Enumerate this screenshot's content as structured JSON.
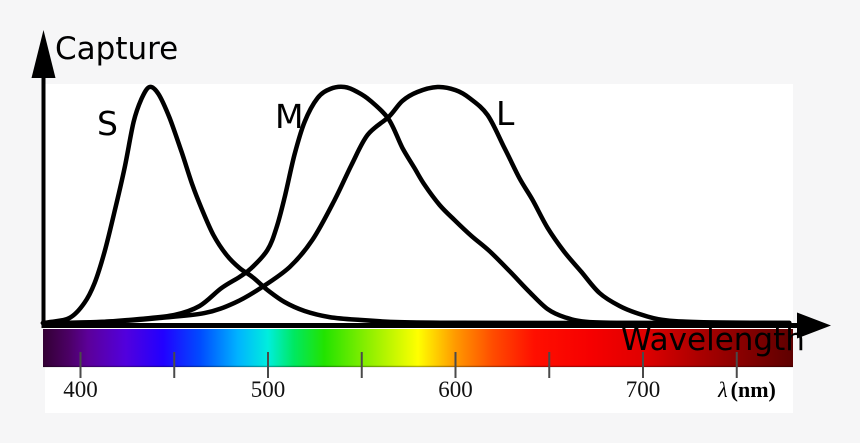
{
  "page": {
    "background_color": "#f6f6f7",
    "panel_color": "#ffffff"
  },
  "chart_data": {
    "type": "line",
    "xlabel": "Wavelength",
    "ylabel": "Capture",
    "x_unit_symbol": "λ",
    "x_unit_name": "(nm)",
    "x_axis_nm_range": [
      380,
      780
    ],
    "y_range": [
      0,
      1
    ],
    "grid": false,
    "legend": "inline labels S, M, L at curve peaks",
    "curve_color": "#000000",
    "axis_color": "#000000",
    "x_ticks_nm": [
      400,
      450,
      500,
      550,
      600,
      650,
      700,
      750
    ],
    "x_labeled_ticks": [
      {
        "nm": 400,
        "label": "400"
      },
      {
        "nm": 500,
        "label": "500"
      },
      {
        "nm": 600,
        "label": "600"
      },
      {
        "nm": 700,
        "label": "700"
      }
    ],
    "series": [
      {
        "name": "S",
        "peak_nm": 437,
        "points": [
          [
            380,
            0
          ],
          [
            383.5,
            0.004
          ],
          [
            394.1,
            0.021
          ],
          [
            402.1,
            0.085
          ],
          [
            407.5,
            0.169
          ],
          [
            412.8,
            0.301
          ],
          [
            418.1,
            0.47
          ],
          [
            423.5,
            0.657
          ],
          [
            428.3,
            0.852
          ],
          [
            432.5,
            0.949
          ],
          [
            436.8,
            1.0
          ],
          [
            441.6,
            0.97
          ],
          [
            447.5,
            0.869
          ],
          [
            453.9,
            0.725
          ],
          [
            459.7,
            0.585
          ],
          [
            464.5,
            0.487
          ],
          [
            470.9,
            0.373
          ],
          [
            477.9,
            0.288
          ],
          [
            484.8,
            0.233
          ],
          [
            491.7,
            0.195
          ],
          [
            499.7,
            0.14
          ],
          [
            508.8,
            0.089
          ],
          [
            519.5,
            0.051
          ],
          [
            532.8,
            0.025
          ],
          [
            548.8,
            0.013
          ],
          [
            570.1,
            0.004
          ],
          [
            602.1,
            0.001
          ],
          [
            680,
            0
          ],
          [
            778,
            0
          ]
        ]
      },
      {
        "name": "M",
        "peak_nm": 540,
        "points": [
          [
            380,
            0
          ],
          [
            388.8,
            0
          ],
          [
            410.1,
            0.004
          ],
          [
            431.5,
            0.017
          ],
          [
            450.1,
            0.034
          ],
          [
            463.5,
            0.072
          ],
          [
            475.2,
            0.148
          ],
          [
            484.8,
            0.195
          ],
          [
            491.2,
            0.233
          ],
          [
            499.7,
            0.309
          ],
          [
            504.5,
            0.403
          ],
          [
            508.8,
            0.53
          ],
          [
            514.1,
            0.712
          ],
          [
            519.5,
            0.852
          ],
          [
            526.4,
            0.953
          ],
          [
            533.3,
            0.992
          ],
          [
            540.8,
            1.0
          ],
          [
            547.7,
            0.979
          ],
          [
            554.7,
            0.941
          ],
          [
            564.3,
            0.864
          ],
          [
            571.7,
            0.742
          ],
          [
            578.1,
            0.657
          ],
          [
            583.5,
            0.585
          ],
          [
            591.5,
            0.5
          ],
          [
            599.5,
            0.436
          ],
          [
            608.5,
            0.369
          ],
          [
            618.1,
            0.305
          ],
          [
            628.8,
            0.22
          ],
          [
            639.5,
            0.131
          ],
          [
            649.1,
            0.059
          ],
          [
            658.1,
            0.025
          ],
          [
            671.5,
            0.004
          ],
          [
            703.5,
            0
          ],
          [
            778,
            0
          ]
        ]
      },
      {
        "name": "L",
        "peak_nm": 590,
        "points": [
          [
            380,
            0
          ],
          [
            388.8,
            0
          ],
          [
            420.8,
            0.008
          ],
          [
            442.1,
            0.021
          ],
          [
            466.1,
            0.042
          ],
          [
            482.1,
            0.085
          ],
          [
            496.0,
            0.148
          ],
          [
            511.5,
            0.237
          ],
          [
            523.7,
            0.352
          ],
          [
            535.5,
            0.521
          ],
          [
            544.5,
            0.669
          ],
          [
            553.1,
            0.797
          ],
          [
            564.3,
            0.873
          ],
          [
            571.7,
            0.941
          ],
          [
            579.7,
            0.979
          ],
          [
            590.4,
            1.0
          ],
          [
            600.0,
            0.987
          ],
          [
            607.5,
            0.953
          ],
          [
            617.1,
            0.881
          ],
          [
            626.1,
            0.742
          ],
          [
            634.1,
            0.614
          ],
          [
            641.1,
            0.521
          ],
          [
            649.1,
            0.403
          ],
          [
            658.1,
            0.301
          ],
          [
            667.2,
            0.216
          ],
          [
            676.8,
            0.127
          ],
          [
            687.5,
            0.072
          ],
          [
            698.1,
            0.038
          ],
          [
            710.4,
            0.013
          ],
          [
            730.1,
            0.004
          ],
          [
            778,
            0
          ]
        ]
      }
    ],
    "spectrum_bar": {
      "tick_color": "#4a4a4a",
      "gradient_stops": [
        {
          "pos": 0.0,
          "color": "#330033"
        },
        {
          "pos": 0.035,
          "color": "#4c0066"
        },
        {
          "pos": 0.06,
          "color": "#5c0099"
        },
        {
          "pos": 0.11,
          "color": "#5200dd"
        },
        {
          "pos": 0.16,
          "color": "#2200ff"
        },
        {
          "pos": 0.21,
          "color": "#004cff"
        },
        {
          "pos": 0.26,
          "color": "#00b3ff"
        },
        {
          "pos": 0.3,
          "color": "#00eedd"
        },
        {
          "pos": 0.335,
          "color": "#00e860"
        },
        {
          "pos": 0.375,
          "color": "#22e300"
        },
        {
          "pos": 0.43,
          "color": "#86ee00"
        },
        {
          "pos": 0.5,
          "color": "#ffff00"
        },
        {
          "pos": 0.55,
          "color": "#ff9900"
        },
        {
          "pos": 0.6,
          "color": "#ff4c00"
        },
        {
          "pos": 0.655,
          "color": "#ff0f00"
        },
        {
          "pos": 0.73,
          "color": "#f60000"
        },
        {
          "pos": 0.8,
          "color": "#e00000"
        },
        {
          "pos": 0.88,
          "color": "#a80000"
        },
        {
          "pos": 1.0,
          "color": "#5e0000"
        }
      ]
    }
  }
}
